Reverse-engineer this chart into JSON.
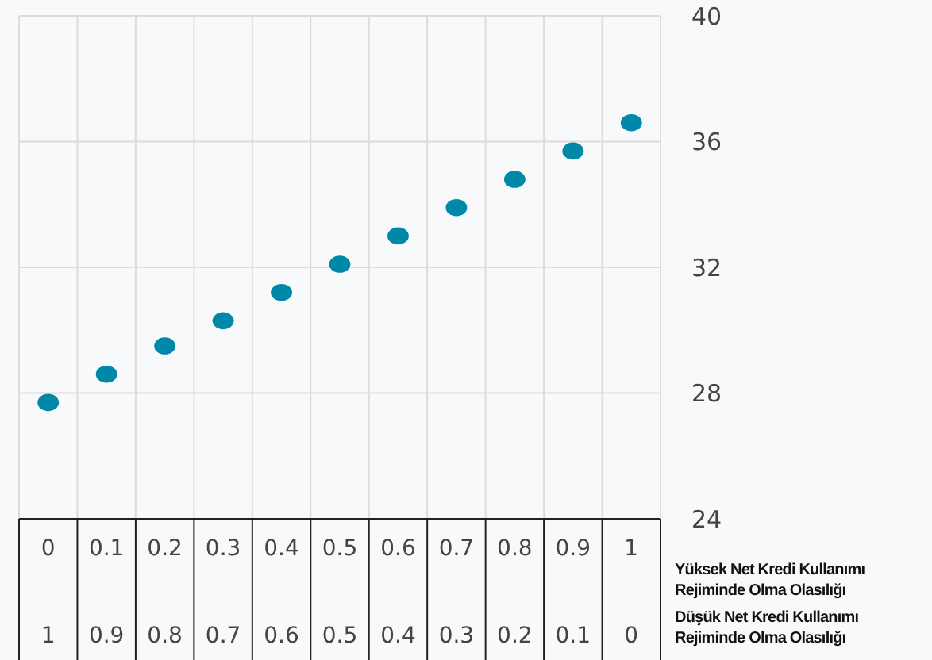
{
  "chart_data": {
    "type": "scatter",
    "x": [
      0,
      0.1,
      0.2,
      0.3,
      0.4,
      0.5,
      0.6,
      0.7,
      0.8,
      0.9,
      1
    ],
    "series": [
      {
        "color": "#0088a8",
        "values": [
          27.7,
          28.6,
          29.5,
          30.3,
          31.2,
          32.1,
          33.0,
          33.9,
          34.8,
          35.7,
          36.6
        ]
      }
    ],
    "xlim": [
      -0.05,
      1.05
    ],
    "xticks": [
      0,
      0.1,
      0.2,
      0.3,
      0.4,
      0.5,
      0.6,
      0.7,
      0.8,
      0.9,
      1
    ],
    "xlabel": "Yüksek Net Kredi Kullanımı Rejiminde Olma Olasılığı",
    "x2lim": [
      1.05,
      -0.05
    ],
    "x2ticks": [
      1,
      0.9,
      0.8,
      0.7,
      0.6,
      0.5,
      0.4,
      0.3,
      0.2,
      0.1,
      0
    ],
    "x2label": "Düşük Net Kredi Kullanımı Rejiminde Olma Olasılığı",
    "ylim": [
      24,
      40
    ],
    "yticks": [
      24,
      28,
      32,
      36,
      40
    ],
    "grid": "y",
    "marker": "circle"
  }
}
